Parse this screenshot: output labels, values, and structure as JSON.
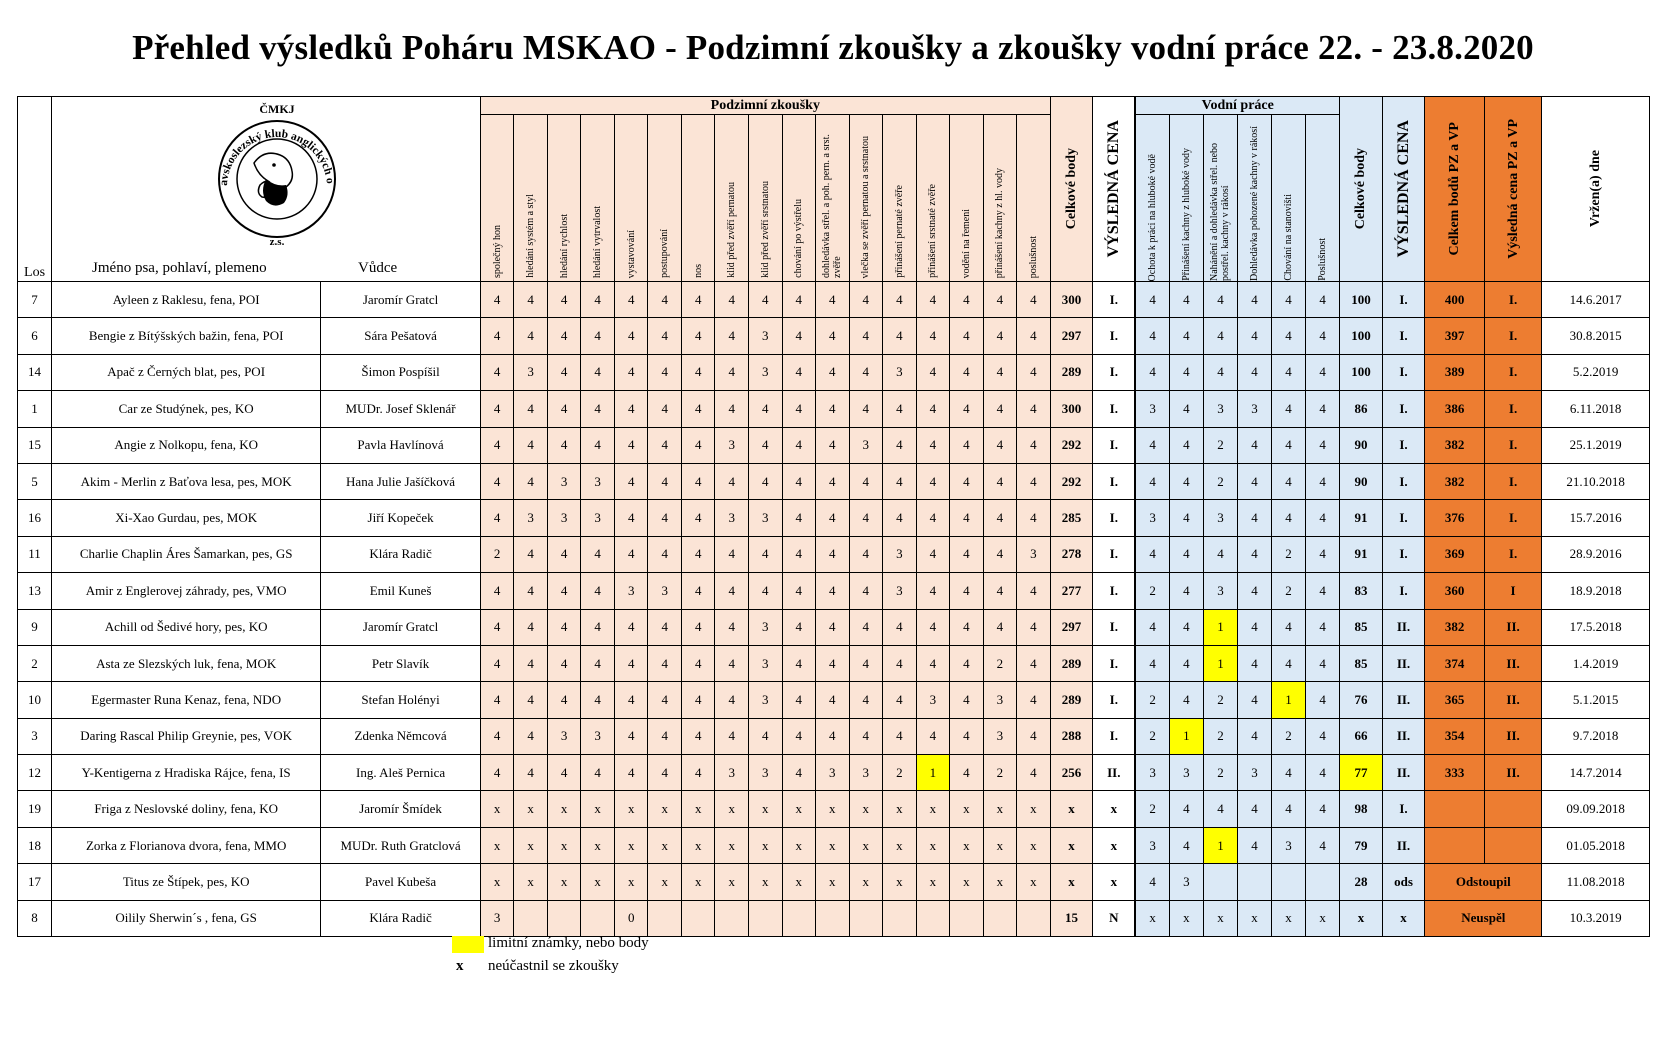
{
  "title": "Přehled výsledků Poháru MSKAO - Podzimní zkoušky a zkoušky vodní práce 22. - 23.8.2020",
  "logo": {
    "top": "ČMKJ",
    "ring": "Moravskoslezský klub anglických ohařů",
    "bottom": "z.s."
  },
  "header": {
    "los": "Los",
    "name": "Jméno psa, pohlaví, plemeno",
    "handler": "Vůdce",
    "pz_group": "Podzimní zkoušky",
    "pz_cols": [
      "společný hon",
      "hledání systém a styl",
      "hledání rychlost",
      "hledání vytrvalost",
      "vystavování",
      "postupování",
      "nos",
      "klid před zvěří pernatou",
      "klid před zvěří srstnatou",
      "chování po výstřelu",
      "dohledávka střel. a poh. pern. a srst. zvěře",
      "vlečka se zvěří pernatou a srstnatou",
      "přinášení pernaté zvěře",
      "přinášení srstnaté zvěře",
      "vodění na řemeni",
      "přinášení kachny z hl. vody",
      "poslušnost"
    ],
    "pz_total": "Celkové body",
    "pz_cena": "VÝSLEDNÁ CENA",
    "vp_group": "Vodní práce",
    "vp_cols": [
      "Ochota k práci na hluboké vodě",
      "Přinášení kachny z hluboké vody",
      "Nahánění a dohledávka střel. nebo postřel. kachny v rákosí",
      "Dohledávka pohozené kachny v rákosí",
      "Chování na stanovišti",
      "Poslušnost"
    ],
    "vp_total": "Celkové body",
    "vp_cena": "VÝSLEDNÁ CENA",
    "sum": "Celkem bodů PZ a VP",
    "sum_cena": "Výsledná cena PZ a VP",
    "date": "Vržen(a) dne"
  },
  "rows": [
    {
      "los": "7",
      "name": "Ayleen z Raklesu, fena, POI",
      "handler": "Jaromír Gratcl",
      "pz": [
        "4",
        "4",
        "4",
        "4",
        "4",
        "4",
        "4",
        "4",
        "4",
        "4",
        "4",
        "4",
        "4",
        "4",
        "4",
        "4",
        "4"
      ],
      "pz_total": "300",
      "pz_cena": "I.",
      "vp": [
        "4",
        "4",
        "4",
        "4",
        "4",
        "4"
      ],
      "vp_total": "100",
      "vp_cena": "I.",
      "sum": "400",
      "sum_cena": "I.",
      "date": "14.6.2017",
      "yellow": []
    },
    {
      "los": "6",
      "name": "Bengie z Bítýšských bažin, fena, POI",
      "handler": "Sára Pešatová",
      "pz": [
        "4",
        "4",
        "4",
        "4",
        "4",
        "4",
        "4",
        "4",
        "3",
        "4",
        "4",
        "4",
        "4",
        "4",
        "4",
        "4",
        "4"
      ],
      "pz_total": "297",
      "pz_cena": "I.",
      "vp": [
        "4",
        "4",
        "4",
        "4",
        "4",
        "4"
      ],
      "vp_total": "100",
      "vp_cena": "I.",
      "sum": "397",
      "sum_cena": "I.",
      "date": "30.8.2015",
      "yellow": []
    },
    {
      "los": "14",
      "name": "Apač z Černých blat, pes, POI",
      "handler": "Šimon Pospíšil",
      "pz": [
        "4",
        "3",
        "4",
        "4",
        "4",
        "4",
        "4",
        "4",
        "3",
        "4",
        "4",
        "4",
        "3",
        "4",
        "4",
        "4",
        "4"
      ],
      "pz_total": "289",
      "pz_cena": "I.",
      "vp": [
        "4",
        "4",
        "4",
        "4",
        "4",
        "4"
      ],
      "vp_total": "100",
      "vp_cena": "I.",
      "sum": "389",
      "sum_cena": "I.",
      "date": "5.2.2019",
      "yellow": []
    },
    {
      "los": "1",
      "name": "Car ze Studýnek, pes, KO",
      "handler": "MUDr. Josef  Sklenář",
      "pz": [
        "4",
        "4",
        "4",
        "4",
        "4",
        "4",
        "4",
        "4",
        "4",
        "4",
        "4",
        "4",
        "4",
        "4",
        "4",
        "4",
        "4"
      ],
      "pz_total": "300",
      "pz_cena": "I.",
      "vp": [
        "3",
        "4",
        "3",
        "3",
        "4",
        "4"
      ],
      "vp_total": "86",
      "vp_cena": "I.",
      "sum": "386",
      "sum_cena": "I.",
      "date": "6.11.2018",
      "yellow": []
    },
    {
      "los": "15",
      "name": "Angie z Nolkopu, fena, KO",
      "handler": "Pavla Havlínová",
      "pz": [
        "4",
        "4",
        "4",
        "4",
        "4",
        "4",
        "4",
        "3",
        "4",
        "4",
        "4",
        "3",
        "4",
        "4",
        "4",
        "4",
        "4"
      ],
      "pz_total": "292",
      "pz_cena": "I.",
      "vp": [
        "4",
        "4",
        "2",
        "4",
        "4",
        "4"
      ],
      "vp_total": "90",
      "vp_cena": "I.",
      "sum": "382",
      "sum_cena": "I.",
      "date": "25.1.2019",
      "yellow": []
    },
    {
      "los": "5",
      "name": "Akim - Merlin z Baťova lesa, pes, MOK",
      "handler": "Hana Julie Jašíčková",
      "pz": [
        "4",
        "4",
        "3",
        "3",
        "4",
        "4",
        "4",
        "4",
        "4",
        "4",
        "4",
        "4",
        "4",
        "4",
        "4",
        "4",
        "4"
      ],
      "pz_total": "292",
      "pz_cena": "I.",
      "vp": [
        "4",
        "4",
        "2",
        "4",
        "4",
        "4"
      ],
      "vp_total": "90",
      "vp_cena": "I.",
      "sum": "382",
      "sum_cena": "I.",
      "date": "21.10.2018",
      "yellow": []
    },
    {
      "los": "16",
      "name": "Xi-Xao Gurdau, pes, MOK",
      "handler": "Jiří  Kopeček",
      "pz": [
        "4",
        "3",
        "3",
        "3",
        "4",
        "4",
        "4",
        "3",
        "3",
        "4",
        "4",
        "4",
        "4",
        "4",
        "4",
        "4",
        "4"
      ],
      "pz_total": "285",
      "pz_cena": "I.",
      "vp": [
        "3",
        "4",
        "3",
        "4",
        "4",
        "4"
      ],
      "vp_total": "91",
      "vp_cena": "I.",
      "sum": "376",
      "sum_cena": "I.",
      "date": "15.7.2016",
      "yellow": []
    },
    {
      "los": "11",
      "name": "Charlie Chaplin Áres Šamarkan, pes, GS",
      "handler": "Klára Radič",
      "pz": [
        "2",
        "4",
        "4",
        "4",
        "4",
        "4",
        "4",
        "4",
        "4",
        "4",
        "4",
        "4",
        "3",
        "4",
        "4",
        "4",
        "3"
      ],
      "pz_total": "278",
      "pz_cena": "I.",
      "vp": [
        "4",
        "4",
        "4",
        "4",
        "2",
        "4"
      ],
      "vp_total": "91",
      "vp_cena": "I.",
      "sum": "369",
      "sum_cena": "I.",
      "date": "28.9.2016",
      "yellow": []
    },
    {
      "los": "13",
      "name": "Amir z Englerovej záhrady, pes, VMO",
      "handler": "Emil Kuneš",
      "pz": [
        "4",
        "4",
        "4",
        "4",
        "3",
        "3",
        "4",
        "4",
        "4",
        "4",
        "4",
        "4",
        "3",
        "4",
        "4",
        "4",
        "4"
      ],
      "pz_total": "277",
      "pz_cena": "I.",
      "vp": [
        "2",
        "4",
        "3",
        "4",
        "2",
        "4"
      ],
      "vp_total": "83",
      "vp_cena": "I.",
      "sum": "360",
      "sum_cena": "I",
      "date": "18.9.2018",
      "yellow": []
    },
    {
      "los": "9",
      "name": "Achill od Šedivé hory, pes, KO",
      "handler": "Jaromír Gratcl",
      "pz": [
        "4",
        "4",
        "4",
        "4",
        "4",
        "4",
        "4",
        "4",
        "3",
        "4",
        "4",
        "4",
        "4",
        "4",
        "4",
        "4",
        "4"
      ],
      "pz_total": "297",
      "pz_cena": "I.",
      "vp": [
        "4",
        "4",
        "1",
        "4",
        "4",
        "4"
      ],
      "vp_total": "85",
      "vp_cena": "II.",
      "sum": "382",
      "sum_cena": "II.",
      "date": "17.5.2018",
      "yellow": [
        "vp2"
      ]
    },
    {
      "los": "2",
      "name": "Asta ze Slezských luk, fena, MOK",
      "handler": "Petr Slavík",
      "pz": [
        "4",
        "4",
        "4",
        "4",
        "4",
        "4",
        "4",
        "4",
        "3",
        "4",
        "4",
        "4",
        "4",
        "4",
        "4",
        "2",
        "4"
      ],
      "pz_total": "289",
      "pz_cena": "I.",
      "vp": [
        "4",
        "4",
        "1",
        "4",
        "4",
        "4"
      ],
      "vp_total": "85",
      "vp_cena": "II.",
      "sum": "374",
      "sum_cena": "II.",
      "date": "1.4.2019",
      "yellow": [
        "vp2"
      ]
    },
    {
      "los": "10",
      "name": "Egermaster Runa Kenaz, fena, NDO",
      "handler": "Stefan Holényi",
      "pz": [
        "4",
        "4",
        "4",
        "4",
        "4",
        "4",
        "4",
        "4",
        "3",
        "4",
        "4",
        "4",
        "4",
        "3",
        "4",
        "3",
        "4"
      ],
      "pz_total": "289",
      "pz_cena": "I.",
      "vp": [
        "2",
        "4",
        "2",
        "4",
        "1",
        "4"
      ],
      "vp_total": "76",
      "vp_cena": "II.",
      "sum": "365",
      "sum_cena": "II.",
      "date": "5.1.2015",
      "yellow": [
        "vp4"
      ]
    },
    {
      "los": "3",
      "name": "Daring Rascal Philip Greynie, pes, VOK",
      "handler": "Zdenka  Němcová",
      "pz": [
        "4",
        "4",
        "3",
        "3",
        "4",
        "4",
        "4",
        "4",
        "4",
        "4",
        "4",
        "4",
        "4",
        "4",
        "4",
        "3",
        "4"
      ],
      "pz_total": "288",
      "pz_cena": "I.",
      "vp": [
        "2",
        "1",
        "2",
        "4",
        "2",
        "4"
      ],
      "vp_total": "66",
      "vp_cena": "II.",
      "sum": "354",
      "sum_cena": "II.",
      "date": "9.7.2018",
      "yellow": [
        "vp1"
      ]
    },
    {
      "los": "12",
      "name": "Y-Kentigerna z Hradiska Rájce, fena, IS",
      "handler": "Ing. Aleš Pernica",
      "pz": [
        "4",
        "4",
        "4",
        "4",
        "4",
        "4",
        "4",
        "3",
        "3",
        "4",
        "3",
        "3",
        "2",
        "1",
        "4",
        "2",
        "4"
      ],
      "pz_total": "256",
      "pz_cena": "II.",
      "vp": [
        "3",
        "3",
        "2",
        "3",
        "4",
        "4"
      ],
      "vp_total": "77",
      "vp_cena": "II.",
      "sum": "333",
      "sum_cena": "II.",
      "date": "14.7.2014",
      "yellow": [
        "pz13",
        "vptotal"
      ]
    },
    {
      "los": "19",
      "name": "Friga z Neslovské doliny, fena, KO",
      "handler": "Jaromír  Šmídek",
      "pz": [
        "x",
        "x",
        "x",
        "x",
        "x",
        "x",
        "x",
        "x",
        "x",
        "x",
        "x",
        "x",
        "x",
        "x",
        "x",
        "x",
        "x"
      ],
      "pz_total": "x",
      "pz_cena": "x",
      "vp": [
        "2",
        "4",
        "4",
        "4",
        "4",
        "4"
      ],
      "vp_total": "98",
      "vp_cena": "I.",
      "sum": "",
      "sum_cena": "",
      "date": "09.09.2018",
      "yellow": []
    },
    {
      "los": "18",
      "name": "Zorka z Florianova dvora, fena, MMO",
      "handler": "MUDr.  Ruth Gratclová",
      "pz": [
        "x",
        "x",
        "x",
        "x",
        "x",
        "x",
        "x",
        "x",
        "x",
        "x",
        "x",
        "x",
        "x",
        "x",
        "x",
        "x",
        "x"
      ],
      "pz_total": "x",
      "pz_cena": "x",
      "vp": [
        "3",
        "4",
        "1",
        "4",
        "3",
        "4"
      ],
      "vp_total": "79",
      "vp_cena": "II.",
      "sum": "",
      "sum_cena": "",
      "date": "01.05.2018",
      "yellow": [
        "vp2"
      ]
    },
    {
      "los": "17",
      "name": "Titus ze Štípek, pes, KO",
      "handler": "Pavel Kubeša",
      "pz": [
        "x",
        "x",
        "x",
        "x",
        "x",
        "x",
        "x",
        "x",
        "x",
        "x",
        "x",
        "x",
        "x",
        "x",
        "x",
        "x",
        "x"
      ],
      "pz_total": "x",
      "pz_cena": "x",
      "vp": [
        "4",
        "3",
        "",
        "",
        "",
        ""
      ],
      "vp_total": "28",
      "vp_cena": "ods",
      "span": "Odstoupil",
      "date": "11.08.2018",
      "yellow": []
    },
    {
      "los": "8",
      "name": "Oilily Sherwin´s , fena, GS",
      "handler": "Klára Radič",
      "pz": [
        "3",
        "",
        "",
        "",
        "0",
        "",
        "",
        "",
        "",
        "",
        "",
        "",
        "",
        "",
        "",
        "",
        ""
      ],
      "pz_total": "15",
      "pz_cena": "N",
      "vp": [
        "x",
        "x",
        "x",
        "x",
        "x",
        "x"
      ],
      "vp_total": "x",
      "vp_cena": "x",
      "span": "Neuspěl",
      "date": "10.3.2019",
      "yellow": []
    }
  ],
  "legend": {
    "yellow": "limitní známky, nebo body",
    "x_mark": "x",
    "x_text": "neúčastnil se zkoušky"
  },
  "colors": {
    "pz": "#fbe4d6",
    "vp": "#dbe9f6",
    "total": "#ed7d31",
    "limit": "#ffff00"
  }
}
